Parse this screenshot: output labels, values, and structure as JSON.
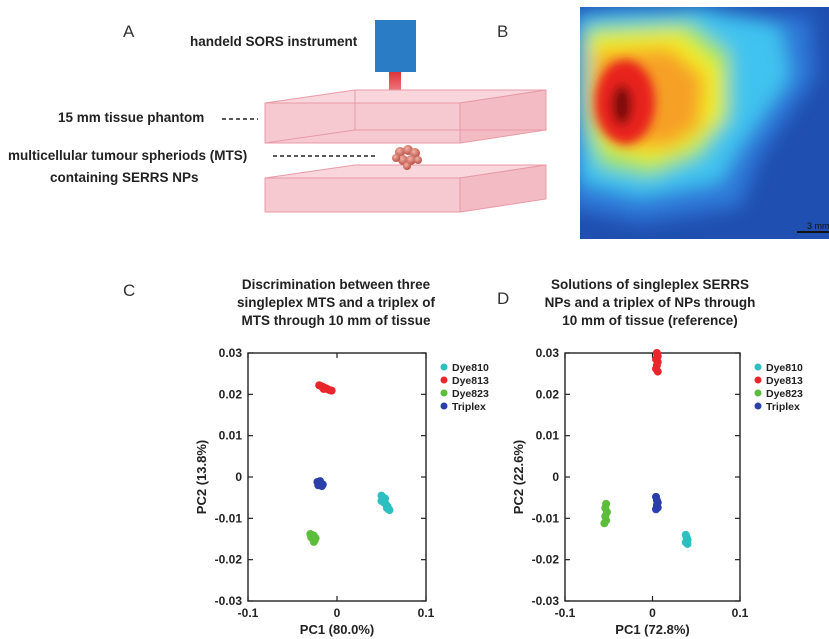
{
  "panelA": {
    "letter": "A",
    "instrument_label": "handeld SORS instrument",
    "phantom_label": "15 mm tissue phantom",
    "mts_label_line1": "multicellular tumour spheriods (MTS)",
    "mts_label_line2": "containing SERRS NPs",
    "colors": {
      "instrument": "#2a7dc4",
      "laser": "#e0333a",
      "phantom": "#f6c9d0",
      "phantom_edge": "#e89aa6"
    }
  },
  "panelB": {
    "letter": "B",
    "scale_bar_label": "3 mm",
    "colors": {
      "low": "#1f4fb0",
      "mid": "#3fc3f0",
      "high": "#f5f020",
      "peak": "#e8231d",
      "max": "#7a1010"
    }
  },
  "panelC": {
    "letter": "C",
    "title_line1": "Discrimination between three",
    "title_line2": "singleplex MTS and a triplex of",
    "title_line3": "MTS through 10 mm of tissue"
  },
  "panelD": {
    "letter": "D",
    "title_line1": "Solutions of singleplex SERRS",
    "title_line2": "NPs and a triplex of NPs through",
    "title_line3": "10 mm of tissue (reference)"
  },
  "chart_data": [
    {
      "type": "scatter",
      "xlabel": "PC1  (80.0%)",
      "ylabel": "PC2  (13.8%)",
      "xlim": [
        -0.1,
        0.1
      ],
      "ylim": [
        -0.03,
        0.03
      ],
      "xticks": [
        "-0.1",
        "0",
        "0.1"
      ],
      "yticks": [
        "0.03",
        "0.02",
        "0.01",
        "0",
        "-0.01",
        "-0.02",
        "-0.03"
      ],
      "legend_position": "outside-right",
      "series": [
        {
          "name": "Dye810",
          "color": "#2bbfc0",
          "points": [
            [
              0.05,
              -0.0045
            ],
            [
              0.052,
              -0.005
            ],
            [
              0.054,
              -0.0052
            ],
            [
              0.05,
              -0.0058
            ],
            [
              0.053,
              -0.0062
            ],
            [
              0.055,
              -0.0066
            ],
            [
              0.057,
              -0.0072
            ],
            [
              0.058,
              -0.0078
            ],
            [
              0.056,
              -0.0075
            ],
            [
              0.059,
              -0.008
            ]
          ]
        },
        {
          "name": "Dye813",
          "color": "#e8262b",
          "points": [
            [
              -0.02,
              0.0222
            ],
            [
              -0.018,
              0.022
            ],
            [
              -0.016,
              0.0218
            ],
            [
              -0.014,
              0.0216
            ],
            [
              -0.012,
              0.0214
            ],
            [
              -0.01,
              0.0212
            ],
            [
              -0.008,
              0.021
            ],
            [
              -0.006,
              0.0209
            ],
            [
              -0.015,
              0.0213
            ]
          ]
        },
        {
          "name": "Dye823",
          "color": "#5cbd3a",
          "points": [
            [
              -0.03,
              -0.0138
            ],
            [
              -0.028,
              -0.014
            ],
            [
              -0.026,
              -0.0142
            ],
            [
              -0.029,
              -0.0146
            ],
            [
              -0.027,
              -0.015
            ],
            [
              -0.025,
              -0.0153
            ],
            [
              -0.026,
              -0.0157
            ],
            [
              -0.024,
              -0.0148
            ]
          ]
        },
        {
          "name": "Triplex",
          "color": "#2a3fa8",
          "points": [
            [
              -0.022,
              -0.0012
            ],
            [
              -0.02,
              -0.0014
            ],
            [
              -0.018,
              -0.0016
            ],
            [
              -0.016,
              -0.0018
            ],
            [
              -0.021,
              -0.002
            ],
            [
              -0.017,
              -0.0022
            ],
            [
              -0.019,
              -0.001
            ]
          ]
        }
      ]
    },
    {
      "type": "scatter",
      "xlabel": "PC1  (72.8%)",
      "ylabel": "PC2  (22.6%)",
      "xlim": [
        -0.1,
        0.1
      ],
      "ylim": [
        -0.03,
        0.03
      ],
      "xticks": [
        "-0.1",
        "0",
        "0.1"
      ],
      "yticks": [
        "0.03",
        "0.02",
        "0.01",
        "0",
        "-0.01",
        "-0.02",
        "-0.03"
      ],
      "legend_position": "outside-right",
      "series": [
        {
          "name": "Dye810",
          "color": "#2bbfc0",
          "points": [
            [
              0.038,
              -0.014
            ],
            [
              0.039,
              -0.0146
            ],
            [
              0.04,
              -0.0152
            ],
            [
              0.038,
              -0.0158
            ],
            [
              0.04,
              -0.0162
            ]
          ]
        },
        {
          "name": "Dye813",
          "color": "#e8262b",
          "points": [
            [
              0.005,
              0.03
            ],
            [
              0.006,
              0.0292
            ],
            [
              0.004,
              0.0285
            ],
            [
              0.006,
              0.0278
            ],
            [
              0.005,
              0.027
            ],
            [
              0.004,
              0.0262
            ],
            [
              0.006,
              0.0255
            ]
          ]
        },
        {
          "name": "Dye823",
          "color": "#5cbd3a",
          "points": [
            [
              -0.053,
              -0.0065
            ],
            [
              -0.054,
              -0.0075
            ],
            [
              -0.052,
              -0.0085
            ],
            [
              -0.054,
              -0.0095
            ],
            [
              -0.053,
              -0.0105
            ],
            [
              -0.055,
              -0.0112
            ]
          ]
        },
        {
          "name": "Triplex",
          "color": "#2a3fa8",
          "points": [
            [
              0.004,
              -0.0048
            ],
            [
              0.005,
              -0.0056
            ],
            [
              0.006,
              -0.0062
            ],
            [
              0.005,
              -0.0068
            ],
            [
              0.006,
              -0.0074
            ],
            [
              0.004,
              -0.0078
            ]
          ]
        }
      ]
    }
  ]
}
